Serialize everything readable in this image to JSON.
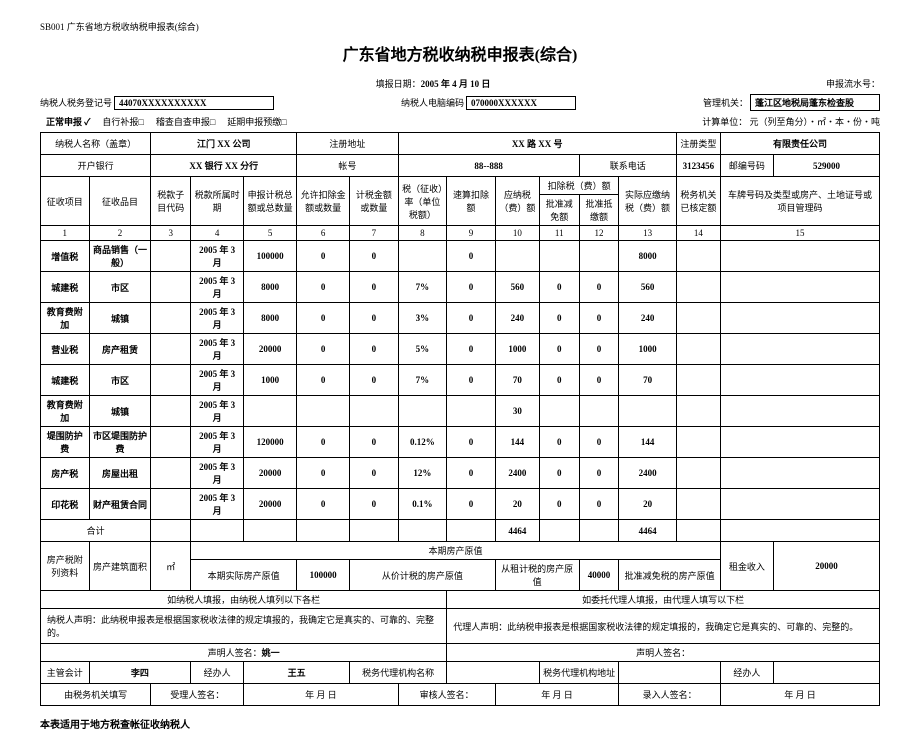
{
  "form_code": "SB001 广东省地方税收纳税申报表(综合)",
  "title": "广东省地方税收纳税申报表(综合)",
  "fill_date_label": "填报日期：",
  "fill_date": "2005 年 4 月 10 日",
  "serial_label": "申报流水号：",
  "taxpayer_reg_label": "纳税人税务登记号",
  "taxpayer_reg": "44070XXXXXXXXXX",
  "taxpayer_code_label": "纳税人电脑编码",
  "taxpayer_code": "070000XXXXXX",
  "admin_label": "管理机关：",
  "admin": "蓬江区地税局蓬东检查股",
  "normal_decl": "正常申报 ✓",
  "self_decl": "自行补报□",
  "audit_decl": "稽查自查申报□",
  "defer_decl": "延期申报预缴□",
  "unit_label": "计算单位：  元（列至角分）・㎡・本・份・吨",
  "h": {
    "name_label": "纳税人名称（盖章）",
    "name": "江门 XX 公司",
    "addr_label": "注册地址",
    "addr": "XX 路 XX 号",
    "regtype_label": "注册类型",
    "regtype": "有限责任公司",
    "bank_label": "开户银行",
    "bank": "XX 银行 XX 分行",
    "acct_label": "帐号",
    "acct": "88--888",
    "phone_label": "联系电话",
    "phone": "3123456",
    "zip_label": "邮编号码",
    "zip": "529000"
  },
  "cols": {
    "c1": "征收项目",
    "c2": "征收品目",
    "c3": "税款子目代码",
    "c4": "税款所属时期",
    "c5": "申报计税总额或总数量",
    "c6": "允许扣除金额或数量",
    "c7": "计税金额或数量",
    "c8": "税（征收）率（单位税额）",
    "c9": "速算扣除额",
    "c10": "应纳税（费）额",
    "c11t": "扣除税（费）额",
    "c11": "批准减免额",
    "c12": "批准抵缴额",
    "c13": "实际应缴纳税（费）额",
    "c14": "税务机关已核定额",
    "c15": "车牌号码及类型或房产、土地证号或项目管理码"
  },
  "numrow": [
    "1",
    "2",
    "3",
    "4",
    "5",
    "6",
    "7",
    "8",
    "9",
    "10",
    "11",
    "12",
    "13",
    "14",
    "15"
  ],
  "rows": [
    {
      "c1": "增值税",
      "c2": "商品销售（一般）",
      "c3": "",
      "c4": "2005 年 3 月",
      "c5": "100000",
      "c6": "0",
      "c7": "0",
      "c8": "",
      "c9": "0",
      "c10": "",
      "c11": "",
      "c12": "",
      "c13": "8000",
      "c14": "",
      "c15": ""
    },
    {
      "c1": "城建税",
      "c2": "市区",
      "c3": "",
      "c4": "2005 年 3 月",
      "c5": "8000",
      "c6": "0",
      "c7": "0",
      "c8": "7%",
      "c9": "0",
      "c10": "560",
      "c11": "0",
      "c12": "0",
      "c13": "560",
      "c14": "",
      "c15": ""
    },
    {
      "c1": "教育费附加",
      "c2": "城镇",
      "c3": "",
      "c4": "2005 年 3 月",
      "c5": "8000",
      "c6": "0",
      "c7": "0",
      "c8": "3%",
      "c9": "0",
      "c10": "240",
      "c11": "0",
      "c12": "0",
      "c13": "240",
      "c14": "",
      "c15": ""
    },
    {
      "c1": "营业税",
      "c2": "房产租赁",
      "c3": "",
      "c4": "2005 年 3 月",
      "c5": "20000",
      "c6": "0",
      "c7": "0",
      "c8": "5%",
      "c9": "0",
      "c10": "1000",
      "c11": "0",
      "c12": "0",
      "c13": "1000",
      "c14": "",
      "c15": ""
    },
    {
      "c1": "城建税",
      "c2": "市区",
      "c3": "",
      "c4": "2005 年 3 月",
      "c5": "1000",
      "c6": "0",
      "c7": "0",
      "c8": "7%",
      "c9": "0",
      "c10": "70",
      "c11": "0",
      "c12": "0",
      "c13": "70",
      "c14": "",
      "c15": ""
    },
    {
      "c1": "教育费附加",
      "c2": "城镇",
      "c3": "",
      "c4": "2005 年 3 月",
      "c5": "",
      "c6": "",
      "c7": "",
      "c8": "",
      "c9": "",
      "c10": "30",
      "c11": "",
      "c12": "",
      "c13": "",
      "c14": "",
      "c15": ""
    },
    {
      "c1": "堤围防护费",
      "c2": "市区堤围防护费",
      "c3": "",
      "c4": "2005 年 3 月",
      "c5": "120000",
      "c6": "0",
      "c7": "0",
      "c8": "0.12%",
      "c9": "0",
      "c10": "144",
      "c11": "0",
      "c12": "0",
      "c13": "144",
      "c14": "",
      "c15": ""
    },
    {
      "c1": "房产税",
      "c2": "房屋出租",
      "c3": "",
      "c4": "2005 年 3 月",
      "c5": "20000",
      "c6": "0",
      "c7": "0",
      "c8": "12%",
      "c9": "0",
      "c10": "2400",
      "c11": "0",
      "c12": "0",
      "c13": "2400",
      "c14": "",
      "c15": ""
    },
    {
      "c1": "印花税",
      "c2": "财产租赁合同",
      "c3": "",
      "c4": "2005 年 3 月",
      "c5": "20000",
      "c6": "0",
      "c7": "0",
      "c8": "0.1%",
      "c9": "0",
      "c10": "20",
      "c11": "0",
      "c12": "0",
      "c13": "20",
      "c14": "",
      "c15": ""
    }
  ],
  "total_label": "合计",
  "total10": "4464",
  "total13": "4464",
  "prop": {
    "attach_label": "房产税附列资料",
    "area_label": "房产建筑面积",
    "unit": "㎡",
    "origval_label": "本期房产原值",
    "actual_label": "本期实际房产原值",
    "actual": "100000",
    "taxable_label": "从价计税的房产原值",
    "rent_orig_label": "从租计税的房产原值",
    "rent_orig": "40000",
    "exempt_label": "批准减免税的房产原值",
    "rent_income_label": "租金收入",
    "rent_income": "20000"
  },
  "decl": {
    "self_fill": "如纳税人填报，由纳税人填列以下各栏",
    "agent_fill": "如委托代理人填报，由代理人填写以下栏",
    "self_stmt": "纳税人声明：此纳税申报表是根据国家税收法律的规定填报的，我确定它是真实的、可靠的、完整的。",
    "agent_stmt": "代理人声明：此纳税申报表是根据国家税收法律的规定填报的，我确定它是真实的、可靠的、完整的。",
    "sign_label": "声明人签名：",
    "sign1": "姚一"
  },
  "foot": {
    "chief_acc_label": "主管会计",
    "chief_acc": "李四",
    "handler_label": "经办人",
    "handler": "王五",
    "agent_org_label": "税务代理机构名称",
    "agent_addr_label": "税务代理机构地址",
    "agent_handler_label": "经办人",
    "authority_label": "由税务机关填写",
    "receiver_label": "受理人签名：",
    "date_tmpl": "年        月        日",
    "auditor_label": "审核人签名：",
    "entry_label": "录入人签名："
  },
  "footnote": "本表适用于地方税查帐征收纳税人"
}
